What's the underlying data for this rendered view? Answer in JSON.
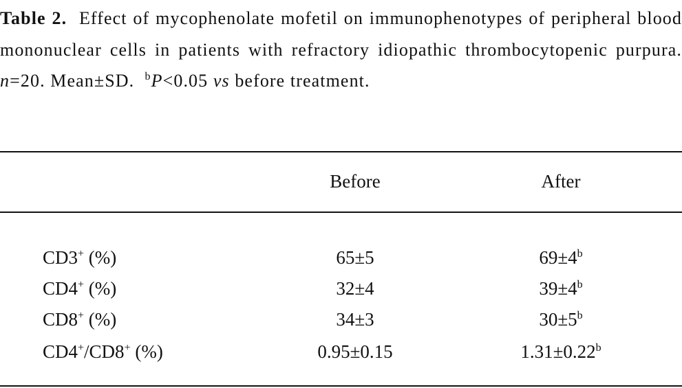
{
  "caption": {
    "label": "Table 2.",
    "text": "Effect of mycophenolate mofetil on immunophenotypes of peripheral blood mononuclear cells in patients with refractory idiopathic thrombocytopenic purpura.",
    "n_symbol": "n",
    "n_text": "=20.  Mean±SD.",
    "note_mark": "b",
    "p_symbol": "P",
    "p_text": "<0.05",
    "vs": "vs",
    "tail": "before treatment."
  },
  "table": {
    "header": [
      "Before",
      "After"
    ],
    "rows": [
      {
        "label": [
          "CD3",
          "+",
          " (%)"
        ],
        "cells": [
          {
            "value": "65±5"
          },
          {
            "value": "69±4",
            "note": "b"
          }
        ]
      },
      {
        "label": [
          "CD4",
          "+",
          " (%)"
        ],
        "cells": [
          {
            "value": "32±4"
          },
          {
            "value": "39±4",
            "note": "b"
          }
        ]
      },
      {
        "label": [
          "CD8",
          "+",
          " (%)"
        ],
        "cells": [
          {
            "value": "34±3"
          },
          {
            "value": "30±5",
            "note": "b"
          }
        ]
      },
      {
        "label": [
          "CD4",
          "+",
          "/CD8",
          "+",
          " (%)"
        ],
        "cells": [
          {
            "value": "0.95±0.15"
          },
          {
            "value": "1.31±0.22",
            "note": "b"
          }
        ]
      }
    ]
  }
}
